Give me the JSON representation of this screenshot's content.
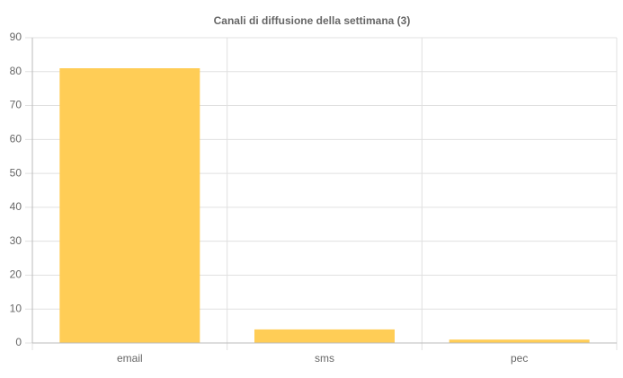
{
  "chart_data": {
    "type": "bar",
    "title": "Canali di diffusione della settimana (3)",
    "categories": [
      "email",
      "sms",
      "pec"
    ],
    "values": [
      81,
      4,
      1
    ],
    "color": "#ffcd56",
    "ylim": [
      0,
      90
    ],
    "yticks": [
      0,
      10,
      20,
      30,
      40,
      50,
      60,
      70,
      80,
      90
    ],
    "grid": true
  }
}
